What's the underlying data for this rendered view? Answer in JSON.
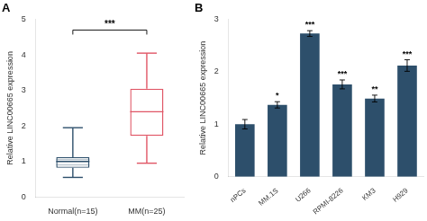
{
  "chart_data": [
    {
      "type": "box",
      "title": "A",
      "categories": [
        "Normal(n=15)",
        "MM(n=25)"
      ],
      "boxes": [
        {
          "whisker_low": 0.55,
          "q1": 0.82,
          "median": 1.0,
          "q3": 1.12,
          "whisker_high": 1.95,
          "inner_lines": [
            0.9,
            1.05
          ],
          "color": "#2d4f6b"
        },
        {
          "whisker_low": 0.95,
          "q1": 1.72,
          "median": 2.4,
          "q3": 3.05,
          "whisker_high": 4.05,
          "color": "#e05565"
        }
      ],
      "ylabel": "Relative LINC00665 expression",
      "ylim": [
        0,
        5
      ],
      "yticks": [
        0,
        1,
        2,
        3,
        4,
        5
      ],
      "grid": false,
      "annotations": [
        {
          "text": "***",
          "from": "Normal(n=15)",
          "to": "MM(n=25)",
          "y": 4.7
        }
      ]
    },
    {
      "type": "bar",
      "title": "B",
      "categories": [
        "nPCs",
        "MM.1S",
        "U266",
        "RPMI-8226",
        "KM3",
        "H929"
      ],
      "values": [
        1.0,
        1.37,
        2.73,
        1.76,
        1.49,
        2.12
      ],
      "errors": [
        0.09,
        0.06,
        0.055,
        0.085,
        0.065,
        0.11
      ],
      "color": "#2d4f6b",
      "ylabel": "Relative LINC00665 expression",
      "ylim": [
        0,
        3
      ],
      "yticks": [
        0,
        1,
        2,
        3
      ],
      "grid": false,
      "annotations": [
        {
          "category": "MM.1S",
          "text": "*"
        },
        {
          "category": "U266",
          "text": "***"
        },
        {
          "category": "RPMI-8226",
          "text": "***"
        },
        {
          "category": "KM3",
          "text": "**"
        },
        {
          "category": "H929",
          "text": "***"
        }
      ]
    }
  ]
}
